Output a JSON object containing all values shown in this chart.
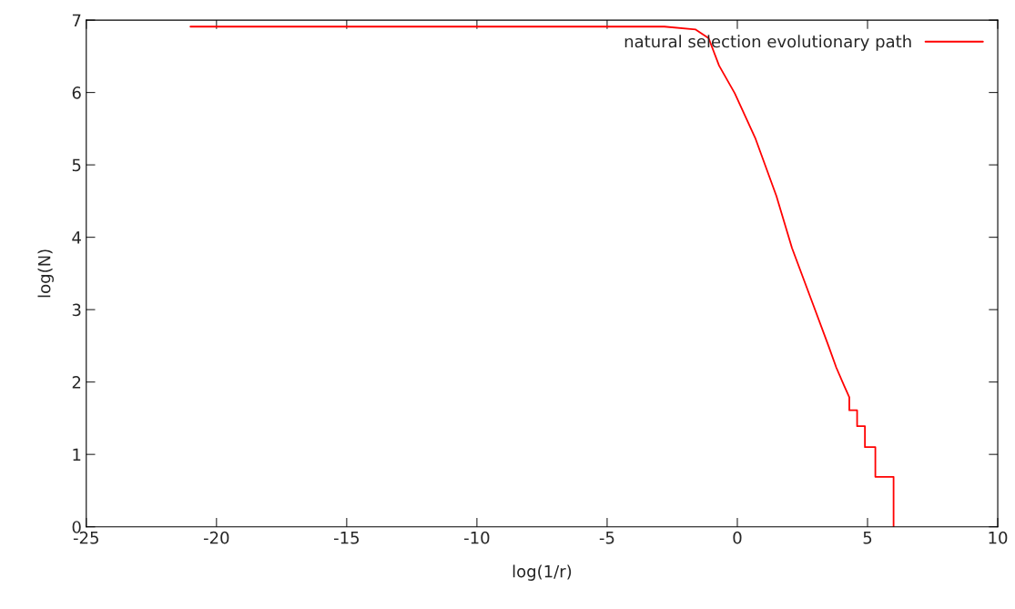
{
  "chart_data": {
    "type": "line",
    "xlabel": "log(1/r)",
    "ylabel": "log(N)",
    "x": [
      -21,
      -2.8,
      -1.6,
      -1.1,
      -0.7,
      -0.1,
      0.7,
      1.5,
      2.1,
      2.9,
      3.5,
      3.8,
      4.1,
      4.3,
      4.3,
      4.6,
      4.6,
      4.9,
      4.9,
      5.3,
      5.3,
      6.0,
      6.0
    ],
    "series": [
      {
        "name": "natural selection evolutionary path",
        "color": "#ff0000",
        "values": [
          6.91,
          6.91,
          6.87,
          6.75,
          6.37,
          5.99,
          5.36,
          4.57,
          3.85,
          3.08,
          2.5,
          2.2,
          1.95,
          1.79,
          1.61,
          1.61,
          1.39,
          1.39,
          1.1,
          1.1,
          0.69,
          0.69,
          0
        ]
      }
    ],
    "xlim": [
      -25,
      10
    ],
    "xticks": [
      -25,
      -20,
      -15,
      -10,
      -5,
      0,
      5,
      10
    ],
    "ylim": [
      0,
      7
    ],
    "yticks": [
      0,
      1,
      2,
      3,
      4,
      5,
      6,
      7
    ],
    "grid": false,
    "legend": "top right",
    "line_style": "solid",
    "marker": "none"
  }
}
